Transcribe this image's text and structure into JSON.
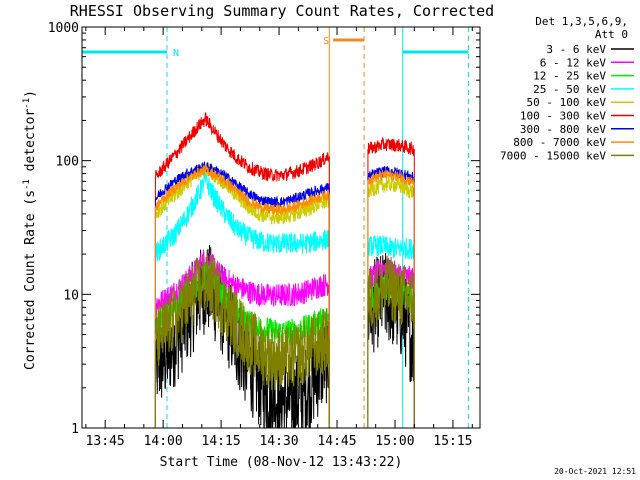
{
  "chart_data": {
    "type": "line",
    "title": "RHESSI Observing Summary Count Rates, Corrected",
    "xlabel": "Start Time (08-Nov-12 13:43:22)",
    "ylabel_main": "Corrected Count Rate (s",
    "ylabel_sup1": "-1",
    "ylabel_mid": " detector",
    "ylabel_sup2": "-1",
    "ylabel_end": ")",
    "y_scale": "log",
    "ylim": [
      1,
      1000
    ],
    "xlim": [
      "13:39",
      "15:22"
    ],
    "x_ticks": [
      "13:45",
      "14:00",
      "14:15",
      "14:30",
      "14:45",
      "15:00",
      "15:15"
    ],
    "y_ticks": [
      "1",
      "10",
      "100",
      "1000"
    ],
    "legend_header": [
      "Det 1,3,5,6,9,",
      "Att 0"
    ],
    "legend_placement": "right",
    "timestamp": "20-Oct-2021 12:51",
    "flag_bars": [
      {
        "label": "N",
        "color": "#00e5ee",
        "segments": [
          [
            "13:39",
            "14:01"
          ],
          [
            "15:02",
            "15:19"
          ]
        ],
        "level": 650
      },
      {
        "label": "S",
        "color": "#f08a24",
        "segments": [
          [
            "14:44",
            "14:52"
          ]
        ],
        "level": 800
      }
    ],
    "interval_lines": [
      {
        "time": "14:01",
        "color": "#00e5ee",
        "style": "dashed"
      },
      {
        "time": "14:43",
        "color": "#f08a24",
        "style": "solid"
      },
      {
        "time": "14:52",
        "color": "#f08a24",
        "style": "dashed"
      },
      {
        "time": "15:02",
        "color": "#00e5ee",
        "style": "solid"
      },
      {
        "time": "15:19",
        "color": "#00e5ee",
        "style": "dashed"
      }
    ],
    "series": [
      {
        "name": "3 - 6 keV",
        "color": "#000000",
        "segments": [
          {
            "x": [
              "13:58",
              "14:00",
              "14:03",
              "14:06",
              "14:09",
              "14:11",
              "14:13",
              "14:16",
              "14:19",
              "14:22",
              "14:25",
              "14:28",
              "14:31",
              "14:34",
              "14:37",
              "14:40",
              "14:43"
            ],
            "y": [
              3,
              3.2,
              4.5,
              6.5,
              9.5,
              11.5,
              10,
              7,
              4.5,
              3,
              2.2,
              1.8,
              1.6,
              1.6,
              1.9,
              2.6,
              3.6
            ]
          },
          {
            "x": [
              "14:53",
              "14:55",
              "14:57",
              "14:59",
              "15:01",
              "15:03",
              "15:05"
            ],
            "y": [
              7,
              8.5,
              9.5,
              9,
              7.5,
              6,
              4
            ]
          }
        ]
      },
      {
        "name": "6 - 12 keV",
        "color": "#ff00ff",
        "segments": [
          {
            "x": [
              "13:58",
              "14:00",
              "14:03",
              "14:06",
              "14:09",
              "14:11",
              "14:13",
              "14:16",
              "14:19",
              "14:22",
              "14:25",
              "14:28",
              "14:31",
              "14:34",
              "14:37",
              "14:40",
              "14:43"
            ],
            "y": [
              8.5,
              9,
              10.5,
              12.5,
              16,
              19,
              16,
              13,
              11.5,
              10.5,
              10,
              9.8,
              9.8,
              10,
              10.5,
              11.5,
              12
            ]
          },
          {
            "x": [
              "14:53",
              "14:55",
              "14:57",
              "14:59",
              "15:01",
              "15:03",
              "15:05"
            ],
            "y": [
              13,
              14,
              16,
              15,
              14,
              13.5,
              13
            ]
          }
        ]
      },
      {
        "name": "12 - 25 keV",
        "color": "#00ee00",
        "segments": [
          {
            "x": [
              "13:58",
              "14:00",
              "14:03",
              "14:06",
              "14:09",
              "14:11",
              "14:13",
              "14:16",
              "14:19",
              "14:22",
              "14:25",
              "14:28",
              "14:31",
              "14:34",
              "14:37",
              "14:40",
              "14:43"
            ],
            "y": [
              5.5,
              6.5,
              8,
              10,
              12,
              14,
              12,
              9.5,
              7.5,
              6.2,
              5.6,
              5.3,
              5.2,
              5.3,
              5.6,
              6.2,
              6.8
            ]
          },
          {
            "x": [
              "14:53",
              "14:55",
              "14:57",
              "14:59",
              "15:01",
              "15:03",
              "15:05"
            ],
            "y": [
              9,
              10,
              11.5,
              11,
              10,
              9.5,
              9
            ]
          }
        ]
      },
      {
        "name": "25 - 50 keV",
        "color": "#00ffff",
        "segments": [
          {
            "x": [
              "13:58",
              "14:00",
              "14:03",
              "14:06",
              "14:09",
              "14:11",
              "14:13",
              "14:16",
              "14:19",
              "14:22",
              "14:25",
              "14:28",
              "14:31",
              "14:34",
              "14:37",
              "14:40",
              "14:43"
            ],
            "y": [
              20,
              23,
              28,
              38,
              55,
              72,
              55,
              40,
              31,
              27,
              25,
              24,
              24,
              24,
              24,
              25,
              26
            ]
          },
          {
            "x": [
              "14:53",
              "14:55",
              "14:57",
              "14:59",
              "15:01",
              "15:03",
              "15:05"
            ],
            "y": [
              23,
              23,
              23,
              22,
              22,
              22,
              22
            ]
          }
        ]
      },
      {
        "name": "50 - 100 keV",
        "color": "#cccc00",
        "segments": [
          {
            "x": [
              "13:58",
              "14:00",
              "14:03",
              "14:06",
              "14:09",
              "14:11",
              "14:13",
              "14:16",
              "14:19",
              "14:22",
              "14:25",
              "14:28",
              "14:31",
              "14:34",
              "14:37",
              "14:40",
              "14:43"
            ],
            "y": [
              40,
              46,
              55,
              68,
              80,
              88,
              80,
              68,
              55,
              45,
              40,
              38,
              38,
              40,
              43,
              47,
              50
            ]
          },
          {
            "x": [
              "14:53",
              "14:55",
              "14:57",
              "14:59",
              "15:01",
              "15:03",
              "15:05"
            ],
            "y": [
              60,
              63,
              66,
              67,
              65,
              61,
              58
            ]
          }
        ]
      },
      {
        "name": "100 - 300 keV",
        "color": "#ee0000",
        "segments": [
          {
            "x": [
              "13:58",
              "14:00",
              "14:03",
              "14:06",
              "14:09",
              "14:11",
              "14:13",
              "14:16",
              "14:19",
              "14:22",
              "14:25",
              "14:28",
              "14:31",
              "14:34",
              "14:37",
              "14:40",
              "14:43"
            ],
            "y": [
              75,
              88,
              110,
              140,
              180,
              205,
              170,
              130,
              105,
              90,
              82,
              78,
              78,
              82,
              88,
              96,
              108
            ]
          },
          {
            "x": [
              "14:53",
              "14:55",
              "14:57",
              "14:59",
              "15:01",
              "15:03",
              "15:05"
            ],
            "y": [
              122,
              127,
              132,
              132,
              130,
              126,
              122
            ]
          }
        ]
      },
      {
        "name": "300 - 800 keV",
        "color": "#0000ee",
        "segments": [
          {
            "x": [
              "13:58",
              "14:00",
              "14:03",
              "14:06",
              "14:09",
              "14:11",
              "14:13",
              "14:16",
              "14:19",
              "14:22",
              "14:25",
              "14:28",
              "14:31",
              "14:34",
              "14:37",
              "14:40",
              "14:43"
            ],
            "y": [
              52,
              60,
              70,
              80,
              87,
              90,
              86,
              77,
              66,
              57,
              51,
              49,
              49,
              52,
              56,
              60,
              63
            ]
          },
          {
            "x": [
              "14:53",
              "14:55",
              "14:57",
              "14:59",
              "15:01",
              "15:03",
              "15:05"
            ],
            "y": [
              76,
              80,
              83,
              83,
              81,
              78,
              74
            ]
          }
        ]
      },
      {
        "name": "800 - 7000 keV",
        "color": "#ff8c00",
        "segments": [
          {
            "x": [
              "13:58",
              "14:00",
              "14:03",
              "14:06",
              "14:09",
              "14:11",
              "14:13",
              "14:16",
              "14:19",
              "14:22",
              "14:25",
              "14:28",
              "14:31",
              "14:34",
              "14:37",
              "14:40",
              "14:43"
            ],
            "y": [
              44,
              52,
              62,
              72,
              81,
              85,
              80,
              70,
              59,
              50,
              45,
              43,
              43,
              45,
              49,
              53,
              56
            ]
          },
          {
            "x": [
              "14:53",
              "14:55",
              "14:57",
              "14:59",
              "15:01",
              "15:03",
              "15:05"
            ],
            "y": [
              71,
              75,
              78,
              78,
              76,
              72,
              69
            ]
          }
        ]
      },
      {
        "name": "7000 - 15000 keV",
        "color": "#808000",
        "segments": [
          {
            "x": [
              "13:58",
              "14:00",
              "14:03",
              "14:06",
              "14:09",
              "14:11",
              "14:13",
              "14:16",
              "14:19",
              "14:22",
              "14:25",
              "14:28",
              "14:31",
              "14:34",
              "14:37",
              "14:40",
              "14:43"
            ],
            "y": [
              4.5,
              5.2,
              6.5,
              8.5,
              11,
              12.5,
              11,
              8,
              6,
              4.6,
              3.8,
              3.4,
              3.3,
              3.4,
              3.8,
              4.2,
              4.6
            ]
          },
          {
            "x": [
              "14:53",
              "14:55",
              "14:57",
              "14:59",
              "15:01",
              "15:03",
              "15:05"
            ],
            "y": [
              9,
              10,
              11,
              11,
              10,
              9.5,
              9
            ]
          }
        ]
      }
    ]
  }
}
